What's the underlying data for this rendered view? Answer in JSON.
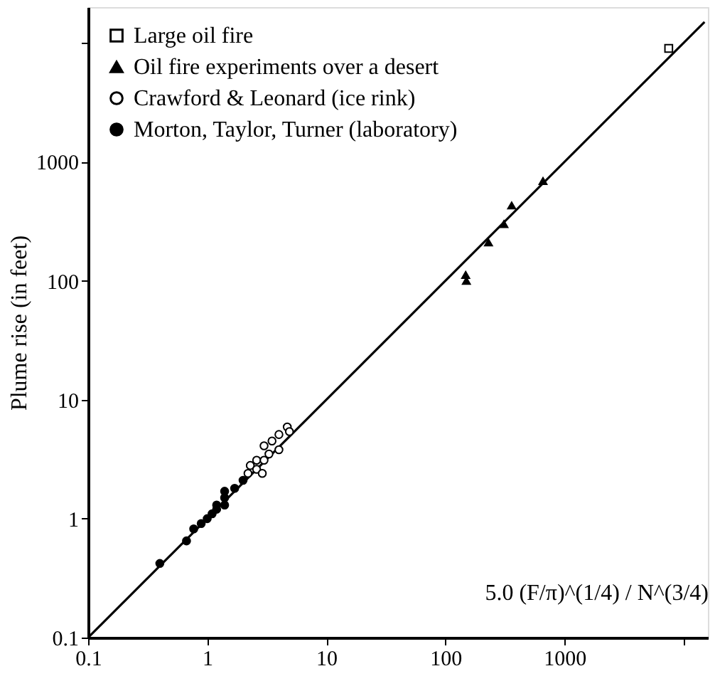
{
  "chart_data": {
    "type": "scatter",
    "xlabel": "5.0 (F/π)^(1/4) / N^(3/4)",
    "ylabel": "Plume rise (in feet)",
    "log": "xy",
    "grid": false,
    "legend": "top left",
    "xlim": [
      0.1,
      16000
    ],
    "ylim": [
      0.1,
      20000
    ],
    "xticks": [
      0.1,
      1,
      10,
      100,
      1000,
      {
        "value": 10000,
        "label": null
      }
    ],
    "yticks": [
      0.1,
      1,
      10,
      100,
      1000,
      {
        "value": 10000,
        "label": null
      }
    ],
    "series": [
      {
        "name": "Large oil fire",
        "marker": "square",
        "color": "#ffffff",
        "x": [
          7500
        ],
        "values": [
          9000
        ]
      },
      {
        "name": "Oil fire experiments over a desert",
        "marker": "triangle",
        "color": "#000000",
        "x": [
          150,
          148,
          230,
          310,
          360,
          660
        ],
        "values": [
          100,
          112,
          210,
          300,
          430,
          690
        ]
      },
      {
        "name": "Crawford & Leonard (ice rink)",
        "marker": "circle",
        "color": "#ffffff",
        "x": [
          4.7,
          4.0,
          4.9,
          3.5,
          4.0,
          3.0,
          3.3,
          2.6,
          3.0,
          2.3,
          2.6,
          2.2,
          2.9
        ],
        "values": [
          5.9,
          5.1,
          5.4,
          4.5,
          3.8,
          4.1,
          3.5,
          3.1,
          3.1,
          2.8,
          2.6,
          2.4,
          2.4
        ]
      },
      {
        "name": "Morton, Taylor, Turner (laboratory)",
        "marker": "circle",
        "color": "#000000",
        "x": [
          2.0,
          1.7,
          1.4,
          1.4,
          1.2,
          1.2,
          1.4,
          1.0,
          1.1,
          0.89,
          0.77,
          0.67,
          0.4
        ],
        "values": [
          2.1,
          1.8,
          1.7,
          1.5,
          1.3,
          1.2,
          1.3,
          1.0,
          1.1,
          0.91,
          0.82,
          0.65,
          0.42
        ]
      },
      {
        "type": "line",
        "color": "#000000",
        "line_style": "solid",
        "x": [
          0.1,
          15000
        ],
        "values": [
          0.1,
          15000
        ]
      }
    ]
  }
}
